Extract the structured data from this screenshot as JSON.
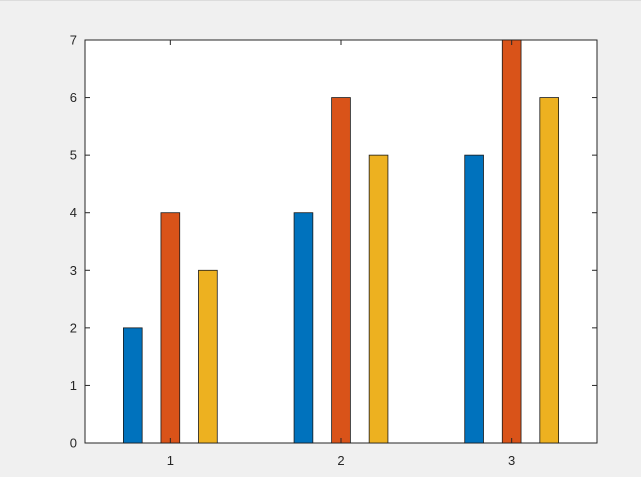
{
  "chart_data": {
    "type": "bar",
    "title": "",
    "xlabel": "",
    "ylabel": "",
    "categories": [
      "1",
      "2",
      "3"
    ],
    "series": [
      {
        "values": [
          2,
          4,
          5
        ],
        "color": "#0072BD"
      },
      {
        "values": [
          4,
          6,
          7
        ],
        "color": "#D95319"
      },
      {
        "values": [
          3,
          5,
          6
        ],
        "color": "#EDB120"
      }
    ],
    "ylim": [
      0,
      7
    ],
    "yticks": [
      "0",
      "1",
      "2",
      "3",
      "4",
      "5",
      "6",
      "7"
    ],
    "xticks": [
      "1",
      "2",
      "3"
    ],
    "grid": false,
    "legend": "none",
    "axis_color": "#262626",
    "background": "#f0f0f0",
    "plot_background": "#ffffff"
  }
}
